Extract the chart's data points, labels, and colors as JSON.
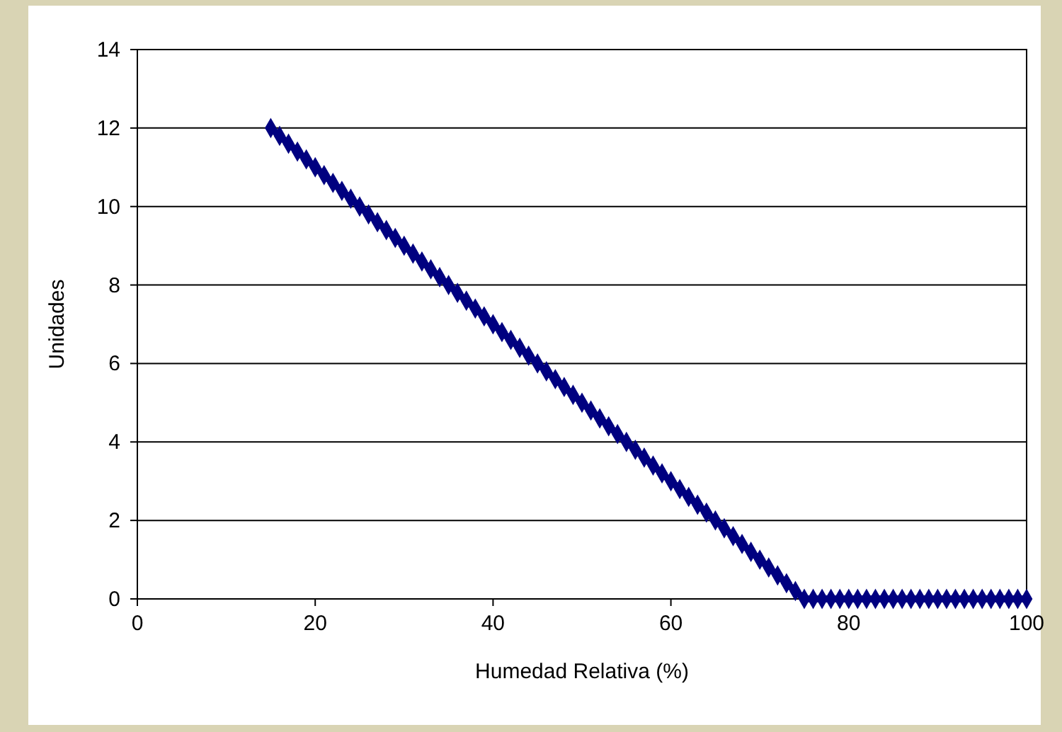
{
  "chart_data": {
    "type": "line",
    "xlabel": "Humedad Relativa (%)",
    "ylabel": "Unidades",
    "series": [
      {
        "color": "#000080",
        "x": [
          15,
          16,
          17,
          18,
          19,
          20,
          21,
          22,
          23,
          24,
          25,
          26,
          27,
          28,
          29,
          30,
          31,
          32,
          33,
          34,
          35,
          36,
          37,
          38,
          39,
          40,
          41,
          42,
          43,
          44,
          45,
          46,
          47,
          48,
          49,
          50,
          51,
          52,
          53,
          54,
          55,
          56,
          57,
          58,
          59,
          60,
          61,
          62,
          63,
          64,
          65,
          66,
          67,
          68,
          69,
          70,
          71,
          72,
          73,
          74,
          75,
          76,
          77,
          78,
          79,
          80,
          81,
          82,
          83,
          84,
          85,
          86,
          87,
          88,
          89,
          90,
          91,
          92,
          93,
          94,
          95,
          96,
          97,
          98,
          99,
          100
        ],
        "values": [
          12,
          11.8,
          11.6,
          11.4,
          11.2,
          11,
          10.8,
          10.6,
          10.4,
          10.2,
          10,
          9.8,
          9.6,
          9.4,
          9.2,
          9,
          8.8,
          8.6,
          8.4,
          8.2,
          8,
          7.8,
          7.6,
          7.4,
          7.2,
          7,
          6.8,
          6.6,
          6.4,
          6.2,
          6,
          5.8,
          5.6,
          5.4,
          5.2,
          5,
          4.8,
          4.6,
          4.4,
          4.2,
          4,
          3.8,
          3.6,
          3.4,
          3.2,
          3,
          2.8,
          2.6,
          2.4,
          2.2,
          2,
          1.8,
          1.6,
          1.4,
          1.2,
          1,
          0.8,
          0.6,
          0.4,
          0.2,
          0,
          0,
          0,
          0,
          0,
          0,
          0,
          0,
          0,
          0,
          0,
          0,
          0,
          0,
          0,
          0,
          0,
          0,
          0,
          0,
          0,
          0,
          0,
          0,
          0,
          0
        ]
      }
    ],
    "xlim": [
      0,
      100
    ],
    "xticks": [
      0,
      20,
      40,
      60,
      80,
      100
    ],
    "ylim": [
      0,
      14
    ],
    "yticks": [
      0,
      2,
      4,
      6,
      8,
      10,
      12,
      14
    ],
    "grid": "y",
    "marker": "diamond",
    "line_style": "solid"
  }
}
